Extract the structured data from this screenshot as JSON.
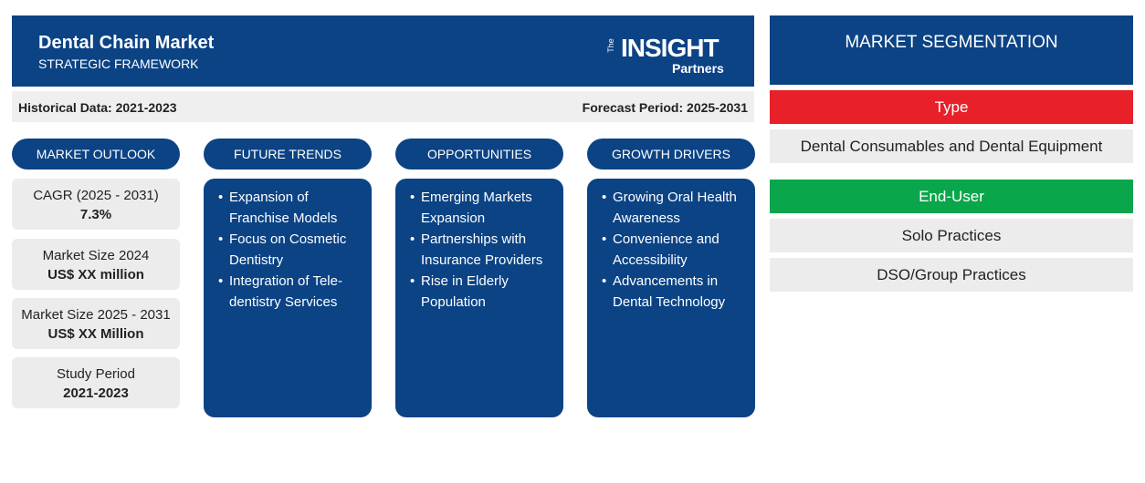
{
  "header": {
    "title": "Dental Chain Market",
    "subtitle": "STRATEGIC FRAMEWORK",
    "logo": {
      "top": "The",
      "main": "INSIGHT",
      "bottom": "Partners"
    }
  },
  "periods": {
    "historical": "Historical Data: 2021-2023",
    "forecast": "Forecast Period: 2025-2031"
  },
  "columns": [
    {
      "title": "MARKET OUTLOOK",
      "cards": [
        {
          "label": "CAGR (2025 - 2031)",
          "value": "7.3%"
        },
        {
          "label": "Market Size 2024",
          "value": "US$ XX million"
        },
        {
          "label": "Market Size 2025 - 2031",
          "value": "US$ XX Million"
        },
        {
          "label": "Study Period",
          "value": "2021-2023"
        }
      ]
    },
    {
      "title": "FUTURE TRENDS",
      "items": [
        "Expansion of Franchise Models",
        "Focus on Cosmetic Dentistry",
        "Integration of Tele-dentistry Services"
      ]
    },
    {
      "title": "OPPORTUNITIES",
      "items": [
        "Emerging Markets Expansion",
        "Partnerships with Insurance Providers",
        "Rise in Elderly Population"
      ]
    },
    {
      "title": "GROWTH DRIVERS",
      "items": [
        "Growing Oral Health Awareness",
        "Convenience and Accessibility",
        "Advancements in Dental Technology"
      ]
    }
  ],
  "segmentation": {
    "title": "MARKET SEGMENTATION",
    "groups": [
      {
        "name": "Type",
        "items": [
          "Dental Consumables and Dental Equipment"
        ]
      },
      {
        "name": "End-User",
        "items": [
          "Solo Practices",
          "DSO/Group Practices"
        ]
      }
    ]
  }
}
